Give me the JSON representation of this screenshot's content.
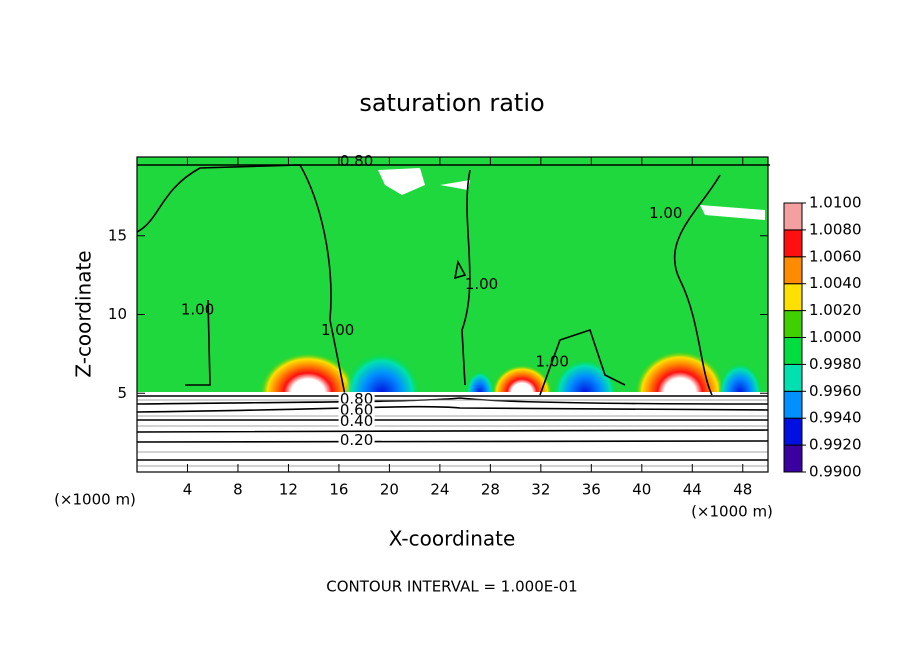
{
  "chart_data": {
    "type": "contour",
    "title": "saturation ratio",
    "x_label": "X-coordinate",
    "y_label": "Z-coordinate",
    "x_unit": "(×1000 m)",
    "y_unit": "(×1000 m)",
    "footer": "CONTOUR INTERVAL = 1.000E-01",
    "xlim": [
      0,
      50
    ],
    "ylim": [
      0,
      20
    ],
    "xticks": [
      4,
      8,
      12,
      16,
      20,
      24,
      28,
      32,
      36,
      40,
      44,
      48
    ],
    "yticks": [
      5,
      10,
      15
    ],
    "colorbar": {
      "ticks": [
        {
          "value": 0.99,
          "label": "0.9900"
        },
        {
          "value": 0.992,
          "label": "0.9920"
        },
        {
          "value": 0.994,
          "label": "0.9940"
        },
        {
          "value": 0.996,
          "label": "0.9960"
        },
        {
          "value": 0.998,
          "label": "0.9980"
        },
        {
          "value": 1.0,
          "label": "1.0000"
        },
        {
          "value": 1.002,
          "label": "1.0020"
        },
        {
          "value": 1.004,
          "label": "1.0040"
        },
        {
          "value": 1.006,
          "label": "1.0060"
        },
        {
          "value": 1.008,
          "label": "1.0080"
        },
        {
          "value": 1.01,
          "label": "1.0100"
        }
      ],
      "colors": [
        "#3a00a0",
        "#0010e0",
        "#0090ff",
        "#00e0b0",
        "#00dd40",
        "#40d000",
        "#ffe000",
        "#ff8c00",
        "#ff1010",
        "#f4a0a0"
      ]
    },
    "annotations": [
      {
        "text": "0.80",
        "x": 17.4,
        "y": 19.7
      },
      {
        "text": "1.00",
        "x": 4.8,
        "y": 10.3
      },
      {
        "text": "1.00",
        "x": 15.9,
        "y": 9.0
      },
      {
        "text": "1.00",
        "x": 27.3,
        "y": 11.9
      },
      {
        "text": "1.00",
        "x": 32.9,
        "y": 7.0
      },
      {
        "text": "1.00",
        "x": 41.9,
        "y": 16.4
      },
      {
        "text": "0.80",
        "x": 17.4,
        "y": 4.6
      },
      {
        "text": "0.60",
        "x": 17.4,
        "y": 3.9
      },
      {
        "text": "0.40",
        "x": 17.4,
        "y": 3.2
      },
      {
        "text": "0.20",
        "x": 17.4,
        "y": 2.0
      }
    ]
  }
}
